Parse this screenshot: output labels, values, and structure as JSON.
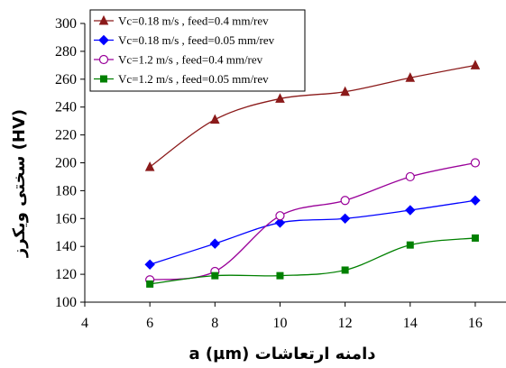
{
  "chart_data": {
    "type": "line",
    "title": "",
    "xlabel": "a (µm)  دامنه ارتعاشات",
    "ylabel": "سختی ویکرز  (HV)",
    "xlim": [
      4,
      17
    ],
    "ylim": [
      100,
      300
    ],
    "xticks": [
      4,
      6,
      8,
      10,
      12,
      14,
      16
    ],
    "yticks": [
      100,
      120,
      140,
      160,
      180,
      200,
      220,
      240,
      260,
      280,
      300
    ],
    "grid": false,
    "legend_position": "top-left",
    "x": [
      6,
      8,
      10,
      12,
      14,
      16
    ],
    "series": [
      {
        "name": "Vc=0.18 m/s , feed=0.4 mm/rev",
        "values": [
          197,
          231,
          246,
          251,
          261,
          270
        ],
        "color": "#8B1A1A",
        "marker": "triangle"
      },
      {
        "name": "Vc=0.18 m/s , feed=0.05 mm/rev",
        "values": [
          127,
          142,
          157,
          160,
          166,
          173
        ],
        "color": "#0000FF",
        "marker": "diamond"
      },
      {
        "name": "Vc=1.2 m/s , feed=0.4 mm/rev",
        "values": [
          116,
          122,
          162,
          173,
          190,
          200
        ],
        "color": "#990099",
        "marker": "circle-open"
      },
      {
        "name": "Vc=1.2 m/s , feed=0.05 mm/rev",
        "values": [
          113,
          119,
          119,
          123,
          141,
          146
        ],
        "color": "#008000",
        "marker": "square"
      }
    ]
  }
}
